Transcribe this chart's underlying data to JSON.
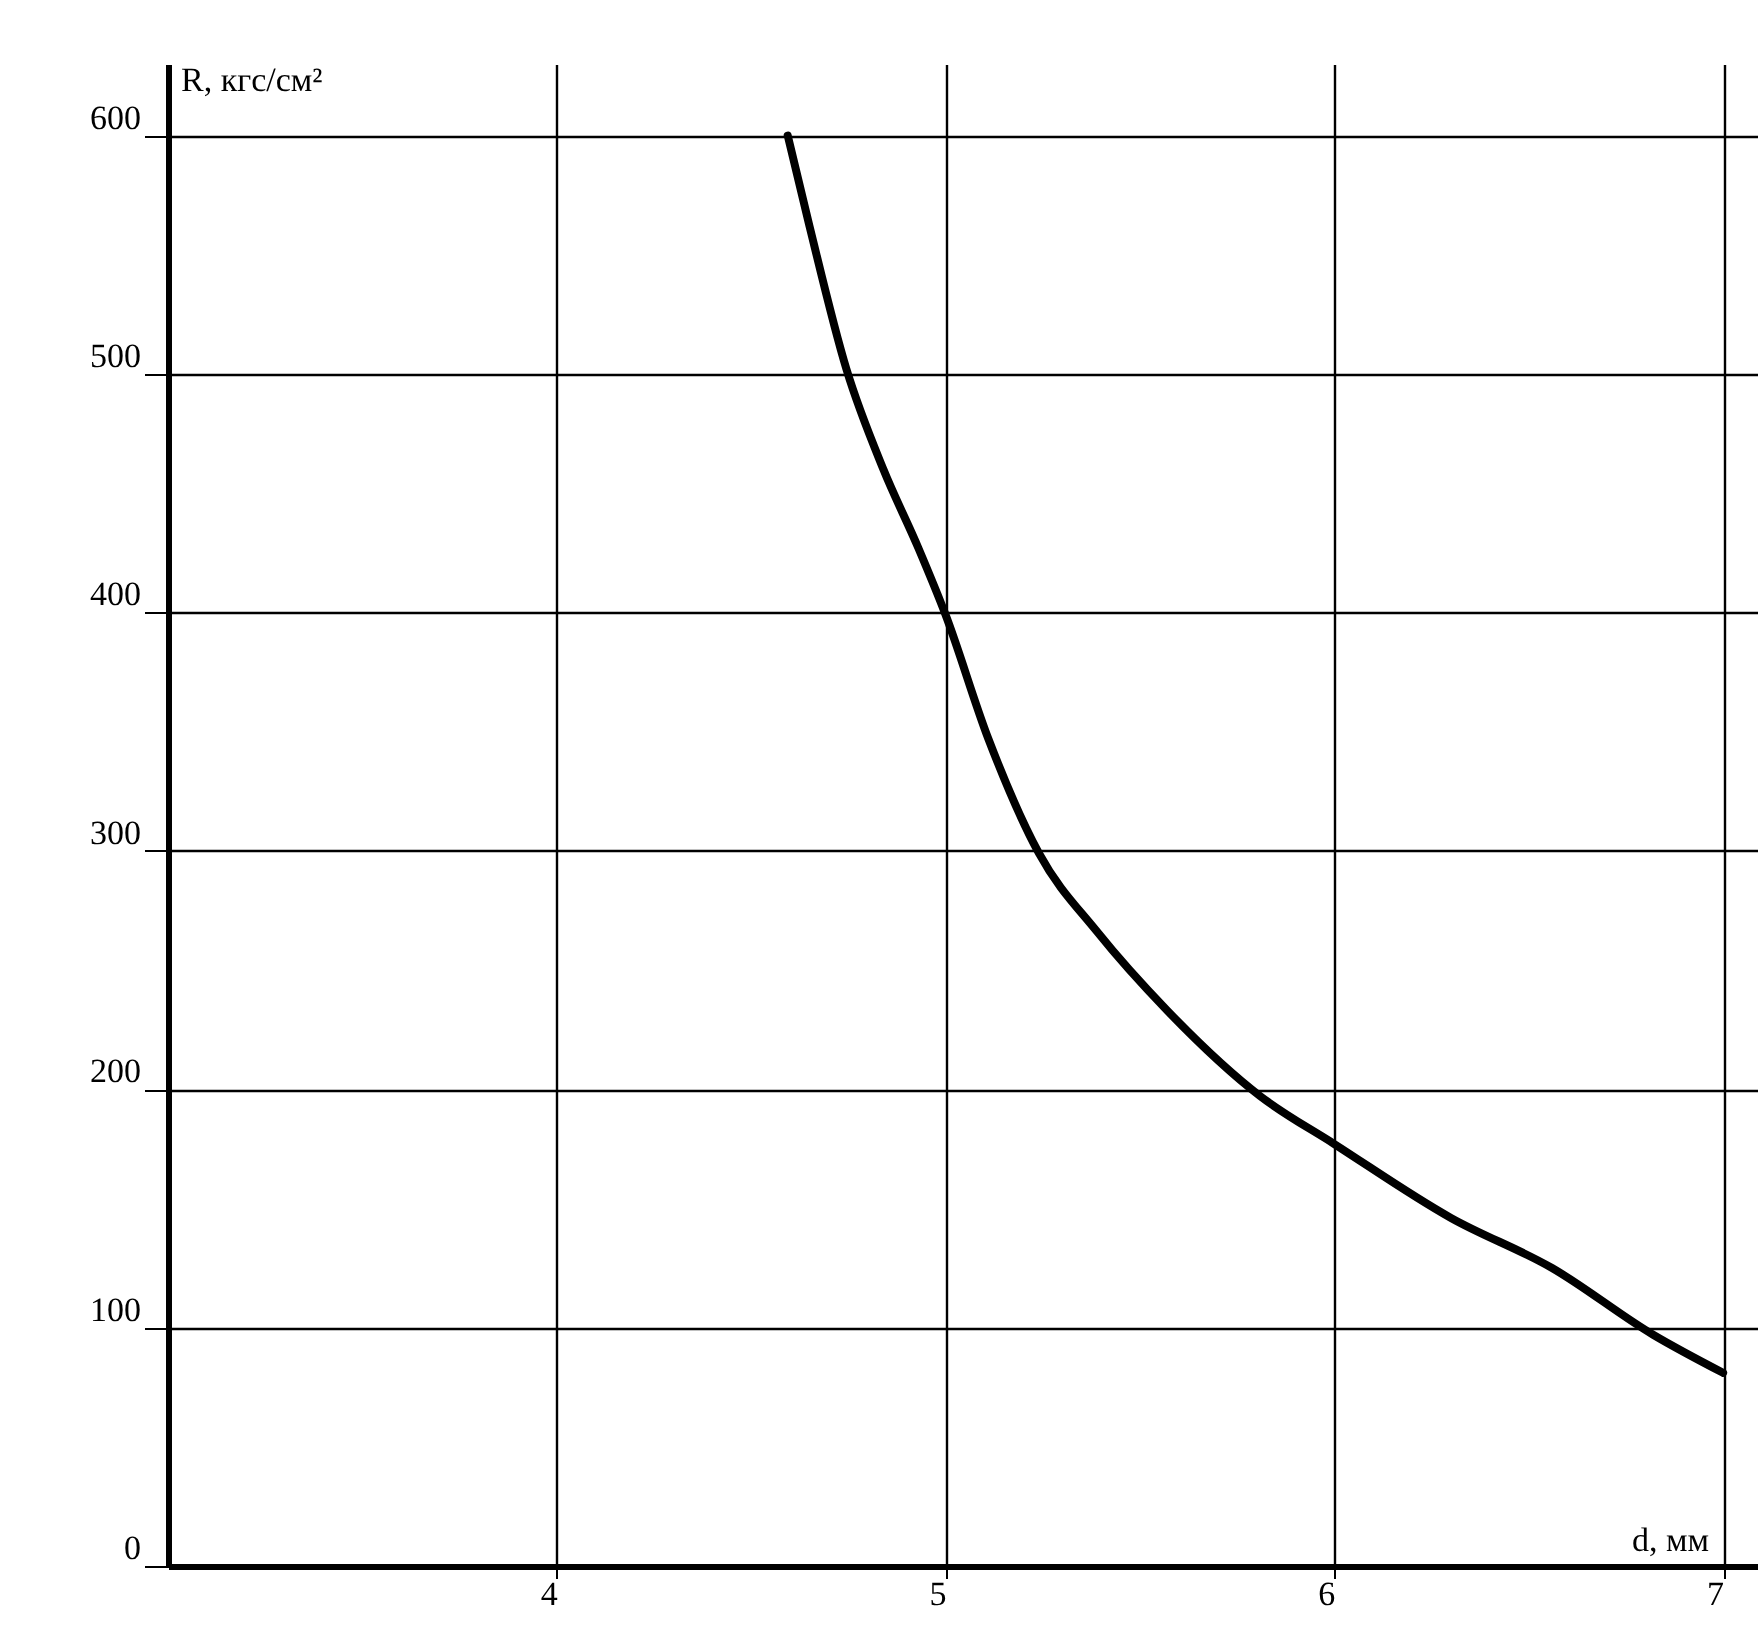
{
  "chart_data": {
    "type": "line",
    "xlabel": "d, мм",
    "ylabel": "R, кгс/см²",
    "x": [
      4.594,
      4.65,
      4.745,
      4.84,
      4.93,
      5.0,
      5.11,
      5.24,
      5.39,
      5.57,
      5.81,
      6.0,
      6.3,
      6.56,
      6.82,
      7.0
    ],
    "series": [
      {
        "color": "#000000",
        "values": [
          600,
          562,
          502,
          460,
          427,
          399,
          347,
          299,
          266,
          233,
          197,
          177,
          146,
          125,
          97,
          81
        ]
      }
    ],
    "xlim": [
      3,
      7.1
    ],
    "ylim": [
      0,
      630
    ],
    "xticks": [
      4,
      5,
      6,
      7
    ],
    "yticks": [
      0,
      100,
      200,
      300,
      400,
      500,
      600
    ],
    "grid": true,
    "marker": "none",
    "line_style": "solid"
  }
}
